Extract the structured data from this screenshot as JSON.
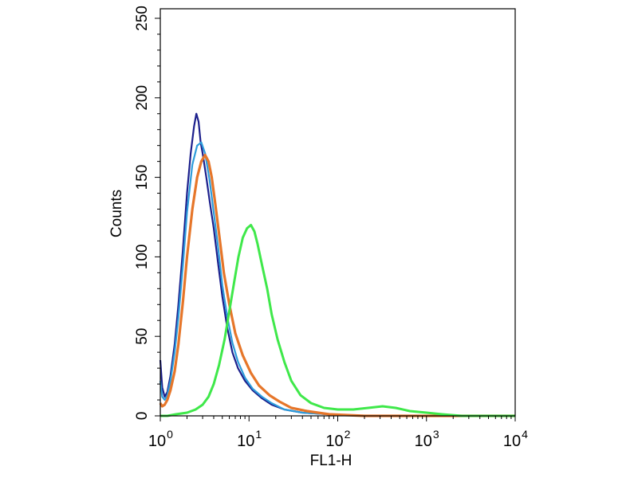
{
  "chart_data": {
    "type": "line",
    "title": "",
    "xlabel": "FL1-H",
    "ylabel": "Counts",
    "xscale": "log",
    "xlim": [
      1,
      10000
    ],
    "ylim": [
      0,
      256
    ],
    "grid": false,
    "legend": "none",
    "y_ticks": [
      {
        "value": 0,
        "label": "0"
      },
      {
        "value": 50,
        "label": "50"
      },
      {
        "value": 100,
        "label": "100"
      },
      {
        "value": 150,
        "label": "150"
      },
      {
        "value": 200,
        "label": "200"
      },
      {
        "value": 250,
        "label": "250"
      }
    ],
    "x_ticks": [
      {
        "value": 1,
        "base": "10",
        "exp": "0"
      },
      {
        "value": 10,
        "base": "10",
        "exp": "1"
      },
      {
        "value": 100,
        "base": "10",
        "exp": "2"
      },
      {
        "value": 1000,
        "base": "10",
        "exp": "3"
      },
      {
        "value": 10000,
        "base": "10",
        "exp": "4"
      }
    ],
    "series": [
      {
        "color": "#1c1f8c",
        "x": [
          1.0,
          1.05,
          1.12,
          1.2,
          1.3,
          1.45,
          1.6,
          1.8,
          2.0,
          2.2,
          2.4,
          2.55,
          2.7,
          2.85,
          3.0,
          3.3,
          3.6,
          4.0,
          4.5,
          5.0,
          5.7,
          6.5,
          7.5,
          9.0,
          11.0,
          14.0,
          18.0,
          25.0,
          40.0,
          80.0,
          200.0,
          1000.0,
          10000.0
        ],
        "y": [
          35,
          18,
          12,
          15,
          25,
          45,
          70,
          105,
          140,
          165,
          182,
          190,
          185,
          172,
          165,
          150,
          135,
          118,
          95,
          75,
          55,
          40,
          30,
          22,
          16,
          11,
          7,
          4,
          2,
          1,
          0,
          0,
          0
        ]
      },
      {
        "color": "#2d9cdb",
        "x": [
          1.0,
          1.05,
          1.12,
          1.2,
          1.3,
          1.45,
          1.6,
          1.8,
          2.0,
          2.3,
          2.6,
          2.9,
          3.2,
          3.6,
          4.0,
          4.5,
          5.0,
          5.7,
          6.5,
          7.5,
          9.0,
          11.0,
          14.0,
          18.0,
          25.0,
          40.0,
          80.0,
          200.0,
          1000.0,
          10000.0
        ],
        "y": [
          22,
          12,
          10,
          13,
          22,
          40,
          62,
          95,
          128,
          158,
          170,
          172,
          165,
          148,
          128,
          105,
          82,
          62,
          46,
          34,
          24,
          17,
          12,
          8,
          4,
          2,
          1,
          0,
          0,
          0
        ]
      },
      {
        "color": "#e6762a",
        "x": [
          1.0,
          1.05,
          1.12,
          1.2,
          1.3,
          1.45,
          1.6,
          1.8,
          2.0,
          2.3,
          2.6,
          2.9,
          3.2,
          3.5,
          3.8,
          4.2,
          4.7,
          5.2,
          6.0,
          7.0,
          8.5,
          10.5,
          13.0,
          17.0,
          22.0,
          30.0,
          45.0,
          80.0,
          200.0,
          1000.0,
          10000.0
        ],
        "y": [
          8,
          6,
          7,
          10,
          16,
          28,
          45,
          72,
          100,
          130,
          150,
          160,
          164,
          160,
          150,
          132,
          110,
          90,
          70,
          52,
          38,
          27,
          19,
          13,
          9,
          5,
          3,
          1,
          0,
          0,
          0
        ]
      },
      {
        "color": "#3fe84a",
        "x": [
          1.0,
          1.2,
          1.5,
          2.0,
          2.5,
          3.0,
          3.5,
          4.0,
          4.6,
          5.3,
          6.0,
          6.8,
          7.6,
          8.5,
          9.5,
          10.5,
          11.5,
          12.5,
          14.0,
          16.0,
          18.0,
          21.0,
          25.0,
          30.0,
          38.0,
          50.0,
          70.0,
          100.0,
          150.0,
          220.0,
          320.0,
          450.0,
          650.0,
          1000.0,
          1500.0,
          2500.0,
          5000.0,
          10000.0
        ],
        "y": [
          0,
          0,
          1,
          2,
          4,
          7,
          12,
          20,
          32,
          48,
          66,
          84,
          100,
          112,
          118,
          120,
          116,
          108,
          95,
          80,
          64,
          48,
          34,
          22,
          13,
          8,
          5,
          4,
          4,
          5,
          6,
          5,
          3,
          2,
          1,
          0,
          0,
          0
        ]
      }
    ]
  }
}
